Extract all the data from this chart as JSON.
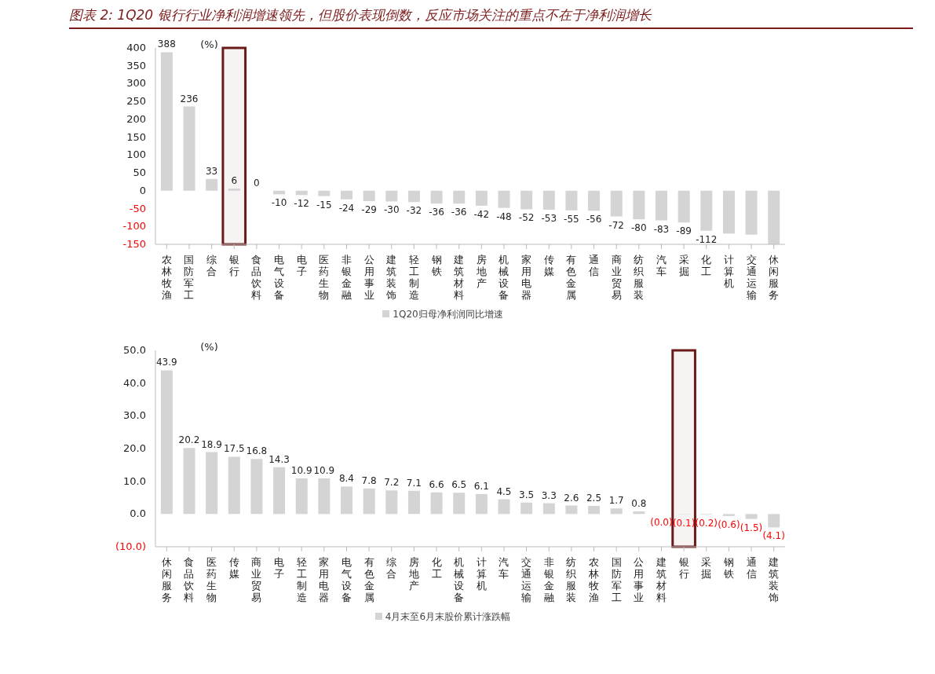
{
  "chart_data": [
    {
      "type": "bar",
      "title": "图表 2: 1Q20 银行行业净利润增速领先，但股价表现倒数，反应市场关注的重点不在于净利润增长",
      "ylabel": "(%)",
      "categories": [
        "农林牧渔",
        "国防军工",
        "综合",
        "银行",
        "食品饮料",
        "电气设备",
        "电子",
        "医药生物",
        "非银金融",
        "公用事业",
        "建筑装饰",
        "轻工制造",
        "钢铁",
        "建筑材料",
        "房地产",
        "机械设备",
        "家用电器",
        "传媒",
        "有色金属",
        "通信",
        "商业贸易",
        "纺织服装",
        "汽车",
        "采掘",
        "化工",
        "计算机",
        "交通运输",
        "休闲服务"
      ],
      "series": [
        {
          "name": "1Q20归母净利润同比增速",
          "color": "#d4d4d4",
          "values": [
            388,
            236,
            33,
            6,
            0,
            -10,
            -12,
            -15,
            -24,
            -29,
            -30,
            -32,
            -36,
            -36,
            -42,
            -48,
            -52,
            -53,
            -55,
            -56,
            -72,
            -80,
            -83,
            -89,
            -112,
            -120,
            -123,
            -150
          ],
          "value_labels": [
            "388",
            "236",
            "33",
            "6",
            "0",
            "-10",
            "-12",
            "-15",
            "-24",
            "-29",
            "-30",
            "-32",
            "-36",
            "-36",
            "-42",
            "-48",
            "-52",
            "-53",
            "-55",
            "-56",
            "-72",
            "-80",
            "-83",
            "-89",
            "-112",
            null,
            null,
            null
          ]
        }
      ],
      "ylim": [
        -150,
        400
      ],
      "yticks": [
        -150,
        -100,
        -50,
        0,
        50,
        100,
        150,
        200,
        250,
        300,
        350,
        400
      ],
      "grid": false,
      "legend": "bottom",
      "bands": [
        {
          "axis": "x",
          "from": "银行",
          "to": "银行",
          "color": "#6b1a1a"
        }
      ]
    },
    {
      "type": "bar",
      "ylabel": "(%)",
      "categories": [
        "休闲服务",
        "食品饮料",
        "医药生物",
        "传媒",
        "商业贸易",
        "电子",
        "轻工制造",
        "家用电器",
        "电气设备",
        "有色金属",
        "综合",
        "房地产",
        "化工",
        "机械设备",
        "计算机",
        "汽车",
        "交通运输",
        "非银金融",
        "纺织服装",
        "农林牧渔",
        "国防军工",
        "公用事业",
        "建筑材料",
        "银行",
        "采掘",
        "钢铁",
        "通信",
        "建筑装饰"
      ],
      "series": [
        {
          "name": "4月末至6月末股价累计涨跌幅",
          "color": "#d4d4d4",
          "values": [
            43.9,
            20.2,
            18.9,
            17.5,
            16.8,
            14.3,
            10.9,
            10.9,
            8.4,
            7.8,
            7.2,
            7.1,
            6.6,
            6.5,
            6.1,
            4.5,
            3.5,
            3.3,
            2.6,
            2.5,
            1.7,
            0.8,
            -0.0,
            -0.1,
            -0.2,
            -0.6,
            -1.5,
            -4.1
          ],
          "value_labels": [
            "43.9",
            "20.2",
            "18.9",
            "17.5",
            "16.8",
            "14.3",
            "10.9",
            "10.9",
            "8.4",
            "7.8",
            "7.2",
            "7.1",
            "6.6",
            "6.5",
            "6.1",
            "4.5",
            "3.5",
            "3.3",
            "2.6",
            "2.5",
            "1.7",
            "0.8",
            "(0.0)",
            "(0.1)",
            "(0.2)",
            "(0.6)",
            "(1.5)",
            "(4.1)"
          ]
        }
      ],
      "ylim": [
        -10,
        50
      ],
      "yticks": [
        {
          "value": -10,
          "label": "(10.0)"
        },
        {
          "value": 0,
          "label": "0.0"
        },
        {
          "value": 10,
          "label": "10.0"
        },
        {
          "value": 20,
          "label": "20.0"
        },
        {
          "value": 30,
          "label": "30.0"
        },
        {
          "value": 40,
          "label": "40.0"
        },
        {
          "value": 50,
          "label": "50.0"
        }
      ],
      "grid": false,
      "legend": "bottom",
      "bands": [
        {
          "axis": "x",
          "from": "银行",
          "to": "银行",
          "color": "#6b1a1a"
        }
      ]
    }
  ]
}
